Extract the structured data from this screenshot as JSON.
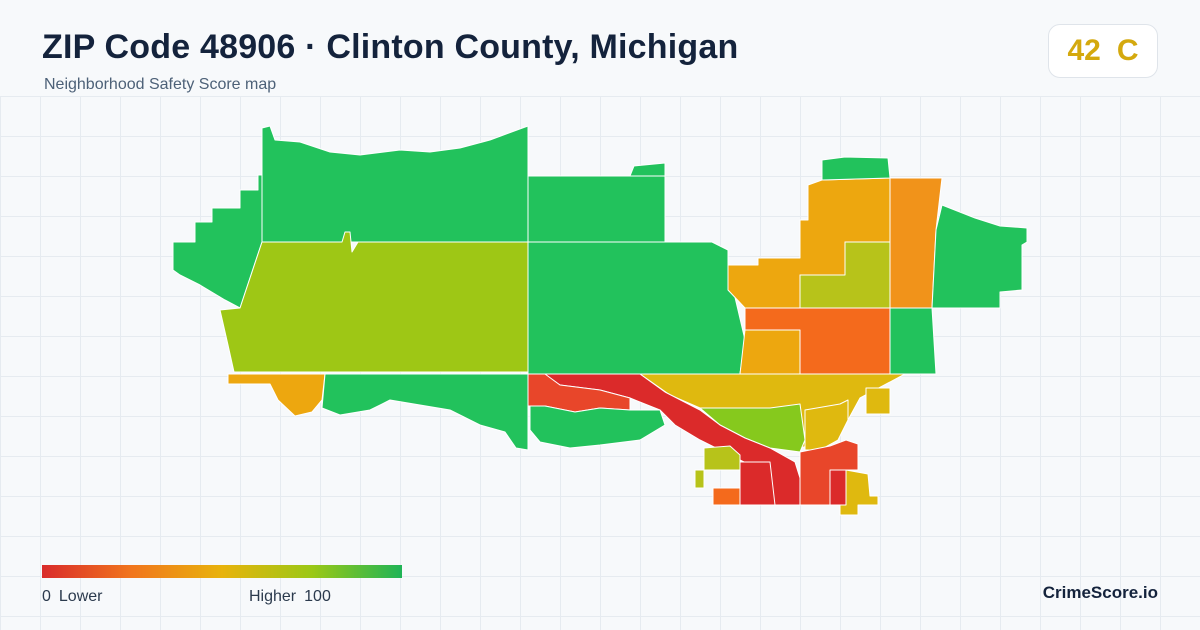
{
  "header": {
    "title": "ZIP Code 48906 · Clinton County, Michigan",
    "subtitle": "Neighborhood Safety Score map"
  },
  "score": {
    "value": "42",
    "grade": "C",
    "color": "#d4a90e"
  },
  "legend": {
    "min_value": "0",
    "min_label": "Lower",
    "max_label": "Higher",
    "max_value": "100",
    "colors": [
      "#d92b2b",
      "#f1761d",
      "#e8b30c",
      "#9bc816",
      "#1fb456"
    ]
  },
  "brand": "CrimeScore.io",
  "palette": {
    "green": "#22c25c",
    "yellow_green": "#9ec715",
    "lime": "#86c91d",
    "olive": "#b7c31a",
    "gold": "#dfb90f",
    "amber": "#eda70f",
    "orange": "#f1931a",
    "deep_orange": "#f46a1c",
    "red_orange": "#e8462a",
    "red": "#db2a2a"
  }
}
